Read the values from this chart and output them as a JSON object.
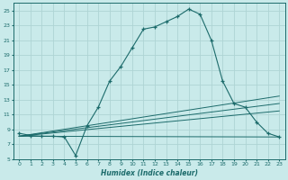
{
  "xlabel": "Humidex (Indice chaleur)",
  "bg_color": "#c9eaea",
  "grid_color": "#aed4d4",
  "line_color": "#1c6b6b",
  "xlim": [
    -0.5,
    23.5
  ],
  "ylim": [
    5,
    26
  ],
  "yticks": [
    5,
    7,
    9,
    11,
    13,
    15,
    17,
    19,
    21,
    23,
    25
  ],
  "xticks": [
    0,
    1,
    2,
    3,
    4,
    5,
    6,
    7,
    8,
    9,
    10,
    11,
    12,
    13,
    14,
    15,
    16,
    17,
    18,
    19,
    20,
    21,
    22,
    23
  ],
  "main_x": [
    0,
    1,
    2,
    3,
    4,
    5,
    6,
    7,
    8,
    9,
    10,
    11,
    12,
    13,
    14,
    15,
    16,
    17,
    18,
    19,
    20,
    21,
    22,
    23
  ],
  "main_y": [
    8.5,
    8.2,
    8.1,
    8.1,
    8.0,
    5.5,
    9.5,
    12.0,
    15.5,
    17.5,
    20.0,
    22.5,
    22.8,
    23.5,
    24.2,
    25.2,
    24.5,
    21.0,
    15.5,
    12.5,
    12.0,
    10.0,
    8.5,
    8.0
  ],
  "trend1_x": [
    0,
    23
  ],
  "trend1_y": [
    8.1,
    8.0
  ],
  "trend2_x": [
    0,
    23
  ],
  "trend2_y": [
    8.1,
    12.5
  ],
  "trend3_x": [
    0,
    23
  ],
  "trend3_y": [
    8.1,
    13.5
  ],
  "trend4_x": [
    0,
    23
  ],
  "trend4_y": [
    8.1,
    11.5
  ]
}
